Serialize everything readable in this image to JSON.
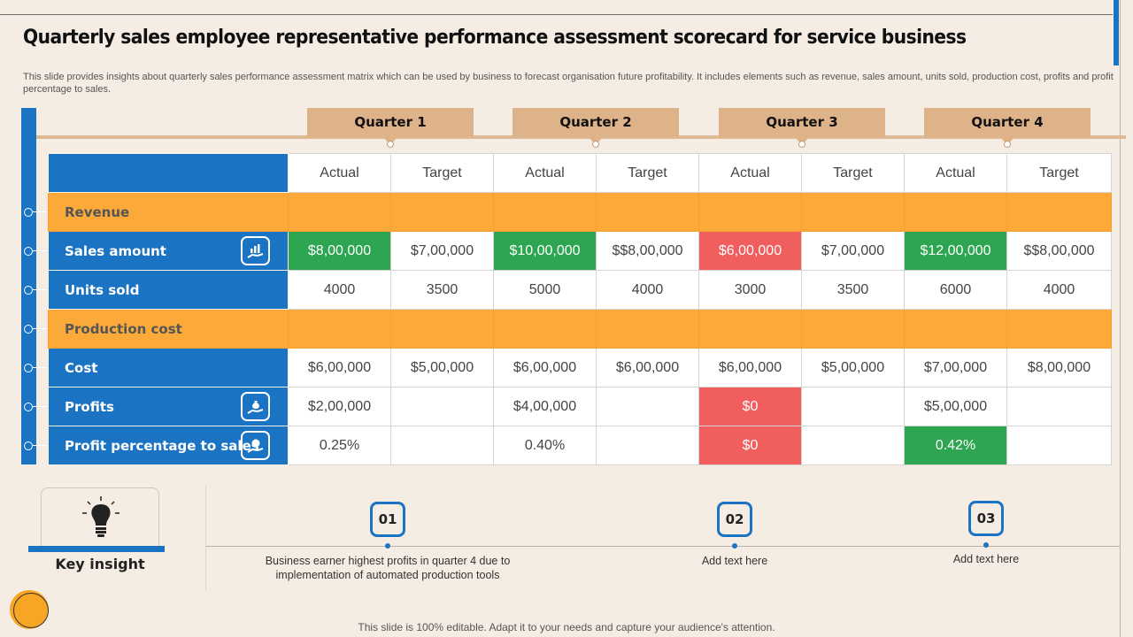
{
  "title": "Quarterly sales employee representative performance assessment scorecard for service business",
  "subtitle": "This slide provides insights about quarterly sales performance assessment matrix which can be used by business to forecast organisation future profitability. It includes elements such as revenue, sales amount, units sold, production cost, profits and profit percentage to sales.",
  "quarters": [
    "Quarter 1",
    "Quarter 2",
    "Quarter 3",
    "Quarter 4"
  ],
  "column_headers": [
    "Actual",
    "Target",
    "Actual",
    "Target",
    "Actual",
    "Target",
    "Actual",
    "Target"
  ],
  "rows": [
    {
      "label": "Revenue",
      "cells": [
        "",
        "",
        "",
        "",
        "",
        "",
        "",
        ""
      ]
    },
    {
      "label": "Sales amount",
      "icon": "hand-chart-icon",
      "cells": [
        "$8,00,000",
        "$7,00,000",
        "$10,00,000",
        "$$8,00,000",
        "$6,00,000",
        "$7,00,000",
        "$12,00,000",
        "$$8,00,000"
      ]
    },
    {
      "label": "Units sold",
      "cells": [
        "4000",
        "3500",
        "5000",
        "4000",
        "3000",
        "3500",
        "6000",
        "4000"
      ]
    },
    {
      "label": "Production cost",
      "cells": [
        "",
        "",
        "",
        "",
        "",
        "",
        "",
        ""
      ]
    },
    {
      "label": "Cost",
      "cells": [
        "$6,00,000",
        "$5,00,000",
        "$6,00,000",
        "$6,00,000",
        "$6,00,000",
        "$5,00,000",
        "$7,00,000",
        "$8,00,000"
      ]
    },
    {
      "label": "Profits",
      "icon": "hand-money-bag-icon",
      "cells": [
        "$2,00,000",
        "",
        "$4,00,000",
        "",
        "$0",
        "",
        "$5,00,000",
        ""
      ]
    },
    {
      "label": "Profit percentage to sales",
      "icon": "hand-coin-icon",
      "cells": [
        "0.25%",
        "",
        "0.40%",
        "",
        "$0",
        "",
        "0.42%",
        ""
      ]
    }
  ],
  "colors": {
    "blue": "#1b73c3",
    "orange": "#fbaa3a",
    "green": "#2da551",
    "red": "#f05e5e",
    "tan": "#deb38a"
  },
  "key_insight": {
    "label": "Key insight",
    "icon": "lightbulb-icon"
  },
  "insights": [
    {
      "num": "01",
      "text": "Business earner highest profits in quarter 4 due to implementation of automated production tools"
    },
    {
      "num": "02",
      "text": "Add text here"
    },
    {
      "num": "03",
      "text": "Add text here"
    }
  ],
  "footer": "This slide is 100% editable. Adapt it to your needs and capture your audience's attention."
}
